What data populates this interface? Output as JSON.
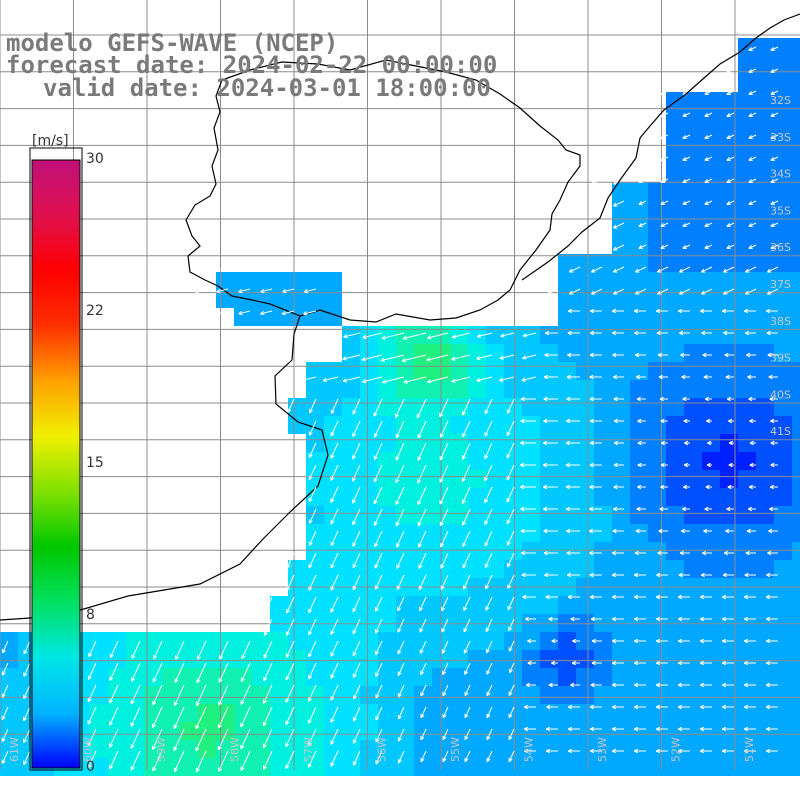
{
  "header": {
    "model": "modelo GEFS-WAVE (NCEP)",
    "forecast_date": "forecast date: 2024-02-22 00:00:00",
    "valid_date": "valid date: 2024-03-01 18:00:00"
  },
  "colorbar": {
    "unit": "[m/s]",
    "ticks": [
      "30",
      "22",
      "15",
      "8",
      "0"
    ],
    "colors": [
      "#0000ff",
      "#00b4ff",
      "#00e6e6",
      "#00e060",
      "#00c800",
      "#80e000",
      "#f0f000",
      "#ffa000",
      "#ff3000",
      "#ff0000",
      "#e01050",
      "#c0107a"
    ]
  },
  "map": {
    "lat_labels": [
      "32S",
      "33S",
      "34S",
      "35S",
      "36S",
      "37S",
      "38S",
      "39S",
      "40S",
      "41S"
    ],
    "lon_labels": [
      "61W",
      "60W",
      "59W",
      "58W",
      "57W",
      "56W",
      "55W",
      "54W",
      "53W",
      "52W",
      "51W"
    ],
    "grid_color": "#888888",
    "coast_color": "#000000",
    "arrow_color": "#ffffff"
  }
}
